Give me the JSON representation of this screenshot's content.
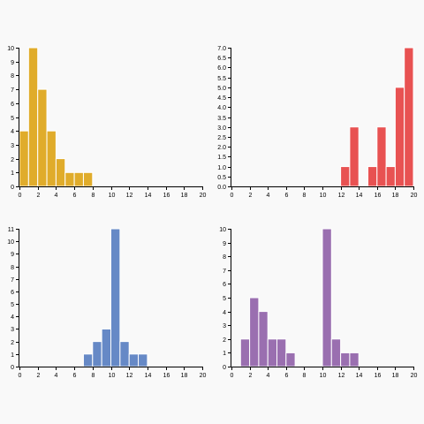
{
  "chart_data": [
    {
      "type": "bar",
      "color": "#e0ac2b",
      "bin_width": 1,
      "x_range": [
        0,
        20
      ],
      "y_range": [
        0,
        10
      ],
      "x_ticks": [
        "0",
        "2",
        "4",
        "6",
        "8",
        "10",
        "12",
        "14",
        "16",
        "18",
        "20"
      ],
      "y_ticks": [
        "0",
        "1",
        "2",
        "3",
        "4",
        "5",
        "6",
        "7",
        "8",
        "9",
        "10"
      ],
      "x": [
        0,
        1,
        2,
        3,
        4,
        5,
        6,
        7
      ],
      "values": [
        4,
        10,
        7,
        4,
        2,
        1,
        1,
        1
      ]
    },
    {
      "type": "bar",
      "color": "#e85252",
      "bin_width": 1,
      "x_range": [
        0,
        20
      ],
      "y_range": [
        0,
        7
      ],
      "x_ticks": [
        "0",
        "2",
        "4",
        "6",
        "8",
        "10",
        "12",
        "14",
        "16",
        "18",
        "20"
      ],
      "y_ticks": [
        "0.0",
        "0.5",
        "1.0",
        "1.5",
        "2.0",
        "2.5",
        "3.0",
        "3.5",
        "4.0",
        "4.5",
        "5.0",
        "5.5",
        "6.0",
        "6.5",
        "7.0"
      ],
      "x": [
        12,
        13,
        15,
        16,
        17,
        18,
        19
      ],
      "values": [
        1,
        3,
        1,
        3,
        1,
        5,
        7
      ]
    },
    {
      "type": "bar",
      "color": "#6689c6",
      "bin_width": 1,
      "x_range": [
        0,
        20
      ],
      "y_range": [
        0,
        11
      ],
      "x_ticks": [
        "0",
        "2",
        "4",
        "6",
        "8",
        "10",
        "12",
        "14",
        "16",
        "18",
        "20"
      ],
      "y_ticks": [
        "0",
        "1",
        "2",
        "3",
        "4",
        "5",
        "6",
        "7",
        "8",
        "9",
        "10",
        "11"
      ],
      "x": [
        7,
        8,
        9,
        10,
        11,
        12,
        13
      ],
      "values": [
        1,
        2,
        3,
        11,
        2,
        1,
        1
      ]
    },
    {
      "type": "bar",
      "color": "#9a6fb0",
      "bin_width": 1,
      "x_range": [
        0,
        20
      ],
      "y_range": [
        0,
        10
      ],
      "x_ticks": [
        "0",
        "2",
        "4",
        "6",
        "8",
        "10",
        "12",
        "14",
        "16",
        "18",
        "20"
      ],
      "y_ticks": [
        "0",
        "1",
        "2",
        "3",
        "4",
        "5",
        "6",
        "7",
        "8",
        "9",
        "10"
      ],
      "x": [
        1,
        2,
        3,
        4,
        5,
        6,
        10,
        11,
        12,
        13
      ],
      "values": [
        2,
        5,
        4,
        2,
        2,
        1,
        10,
        2,
        1,
        1
      ]
    }
  ]
}
